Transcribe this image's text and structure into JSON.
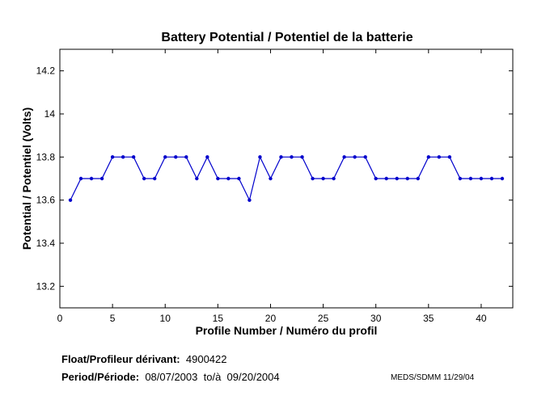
{
  "chart_data": {
    "type": "line",
    "title": "Battery Potential / Potentiel de la batterie",
    "xlabel": "Profile Number / Numéro du profil",
    "ylabel": "Potential / Potentiel (Volts)",
    "xlim": [
      0,
      43
    ],
    "ylim": [
      13.1,
      14.3
    ],
    "xticks": [
      0,
      5,
      10,
      15,
      20,
      25,
      30,
      35,
      40
    ],
    "yticks": [
      13.2,
      13.4,
      13.6,
      13.8,
      14,
      14.2
    ],
    "ytick_labels": [
      "13.2",
      "13.4",
      "13.6",
      "13.8",
      "14",
      "14.2"
    ],
    "grid": false,
    "line_color": "#0000cc",
    "x": [
      1,
      2,
      3,
      4,
      5,
      6,
      7,
      8,
      9,
      10,
      11,
      12,
      13,
      14,
      15,
      16,
      17,
      18,
      19,
      20,
      21,
      22,
      23,
      24,
      25,
      26,
      27,
      28,
      29,
      30,
      31,
      32,
      33,
      34,
      35,
      36,
      37,
      38,
      39,
      40,
      41,
      42
    ],
    "values": [
      13.6,
      13.7,
      13.7,
      13.7,
      13.8,
      13.8,
      13.8,
      13.7,
      13.7,
      13.8,
      13.8,
      13.8,
      13.7,
      13.8,
      13.7,
      13.7,
      13.7,
      13.6,
      13.8,
      13.7,
      13.8,
      13.8,
      13.8,
      13.7,
      13.7,
      13.7,
      13.8,
      13.8,
      13.8,
      13.7,
      13.7,
      13.7,
      13.7,
      13.7,
      13.8,
      13.8,
      13.8,
      13.7,
      13.7,
      13.7,
      13.7,
      13.7
    ]
  },
  "footer": {
    "float_label": "Float/Profileur dérivant:",
    "float_id": "4900422",
    "period_label": "Period/Période:",
    "period_start": "08/07/2003",
    "period_sep": "to/à",
    "period_end": "09/20/2004",
    "credit": "MEDS/SDMM  11/29/04"
  }
}
